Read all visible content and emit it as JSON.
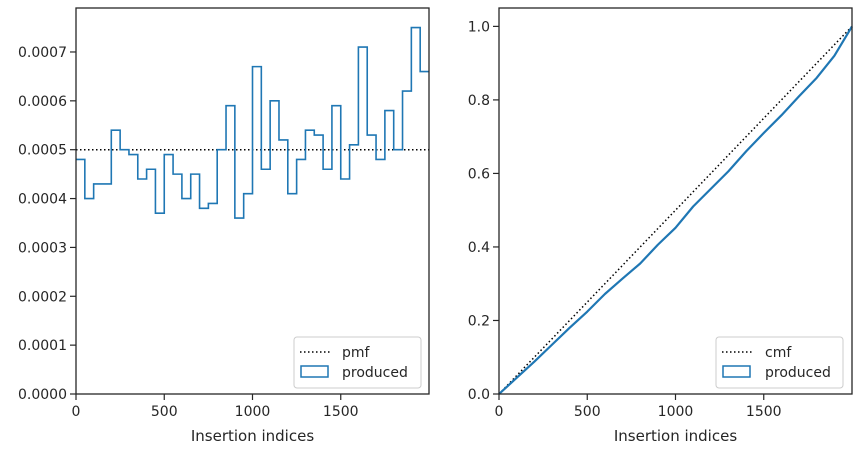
{
  "chart_data": [
    {
      "type": "histogram-step",
      "xlabel": "Insertion indices",
      "ylabel": "",
      "xlim": [
        0,
        2000
      ],
      "ylim": [
        0,
        0.00079
      ],
      "xticks": [
        0,
        500,
        1000,
        1500
      ],
      "xtick_labels": [
        "0",
        "500",
        "1000",
        "1500"
      ],
      "yticks": [
        0,
        0.0001,
        0.0002,
        0.0003,
        0.0004,
        0.0005,
        0.0006,
        0.0007
      ],
      "ytick_labels": [
        "0.0000",
        "0.0001",
        "0.0002",
        "0.0003",
        "0.0004",
        "0.0005",
        "0.0006",
        "0.0007"
      ],
      "bin_width": 50,
      "series": [
        {
          "name": "pmf",
          "kind": "reference-line",
          "style": "dotted",
          "color": "#000000",
          "value": 0.0005
        },
        {
          "name": "produced",
          "kind": "step",
          "color": "#1f77b4",
          "bin_edges": [
            0,
            50,
            100,
            150,
            200,
            250,
            300,
            350,
            400,
            450,
            500,
            550,
            600,
            650,
            700,
            750,
            800,
            850,
            900,
            950,
            1000,
            1050,
            1100,
            1150,
            1200,
            1250,
            1300,
            1350,
            1400,
            1450,
            1500,
            1550,
            1600,
            1650,
            1700,
            1750,
            1800,
            1850,
            1900,
            1950,
            2000
          ],
          "values": [
            0.00048,
            0.0004,
            0.00043,
            0.00043,
            0.00054,
            0.0005,
            0.00049,
            0.00044,
            0.00046,
            0.00037,
            0.00049,
            0.00045,
            0.0004,
            0.00045,
            0.00038,
            0.00039,
            0.0005,
            0.00059,
            0.00036,
            0.00041,
            0.00067,
            0.00046,
            0.0006,
            0.00052,
            0.00041,
            0.00048,
            0.00054,
            0.00053,
            0.00046,
            0.00059,
            0.00044,
            0.00051,
            0.00071,
            0.00053,
            0.00048,
            0.00058,
            0.0005,
            0.00062,
            0.00075,
            0.00066
          ]
        }
      ],
      "legend": {
        "position": "bottom-right",
        "entries": [
          "pmf",
          "produced"
        ]
      }
    },
    {
      "type": "line",
      "xlabel": "Insertion indices",
      "ylabel": "",
      "xlim": [
        0,
        2000
      ],
      "ylim": [
        0,
        1.05
      ],
      "xticks": [
        0,
        500,
        1000,
        1500
      ],
      "xtick_labels": [
        "0",
        "500",
        "1000",
        "1500"
      ],
      "yticks": [
        0,
        0.2,
        0.4,
        0.6,
        0.8,
        1.0
      ],
      "ytick_labels": [
        "0.0",
        "0.2",
        "0.4",
        "0.6",
        "0.8",
        "1.0"
      ],
      "series": [
        {
          "name": "cmf",
          "style": "dotted",
          "color": "#000000",
          "x": [
            0,
            2000
          ],
          "y": [
            0,
            1.0
          ]
        },
        {
          "name": "produced",
          "style": "solid",
          "color": "#1f77b4",
          "x": [
            0,
            100,
            200,
            300,
            400,
            500,
            600,
            700,
            800,
            900,
            1000,
            1100,
            1200,
            1300,
            1400,
            1500,
            1600,
            1700,
            1800,
            1900,
            2000
          ],
          "y": [
            0,
            0.044,
            0.088,
            0.134,
            0.18,
            0.224,
            0.272,
            0.314,
            0.355,
            0.406,
            0.452,
            0.51,
            0.558,
            0.606,
            0.66,
            0.71,
            0.758,
            0.81,
            0.86,
            0.92,
            1.0
          ]
        }
      ],
      "legend": {
        "position": "bottom-right",
        "entries": [
          "cmf",
          "produced"
        ]
      }
    }
  ]
}
